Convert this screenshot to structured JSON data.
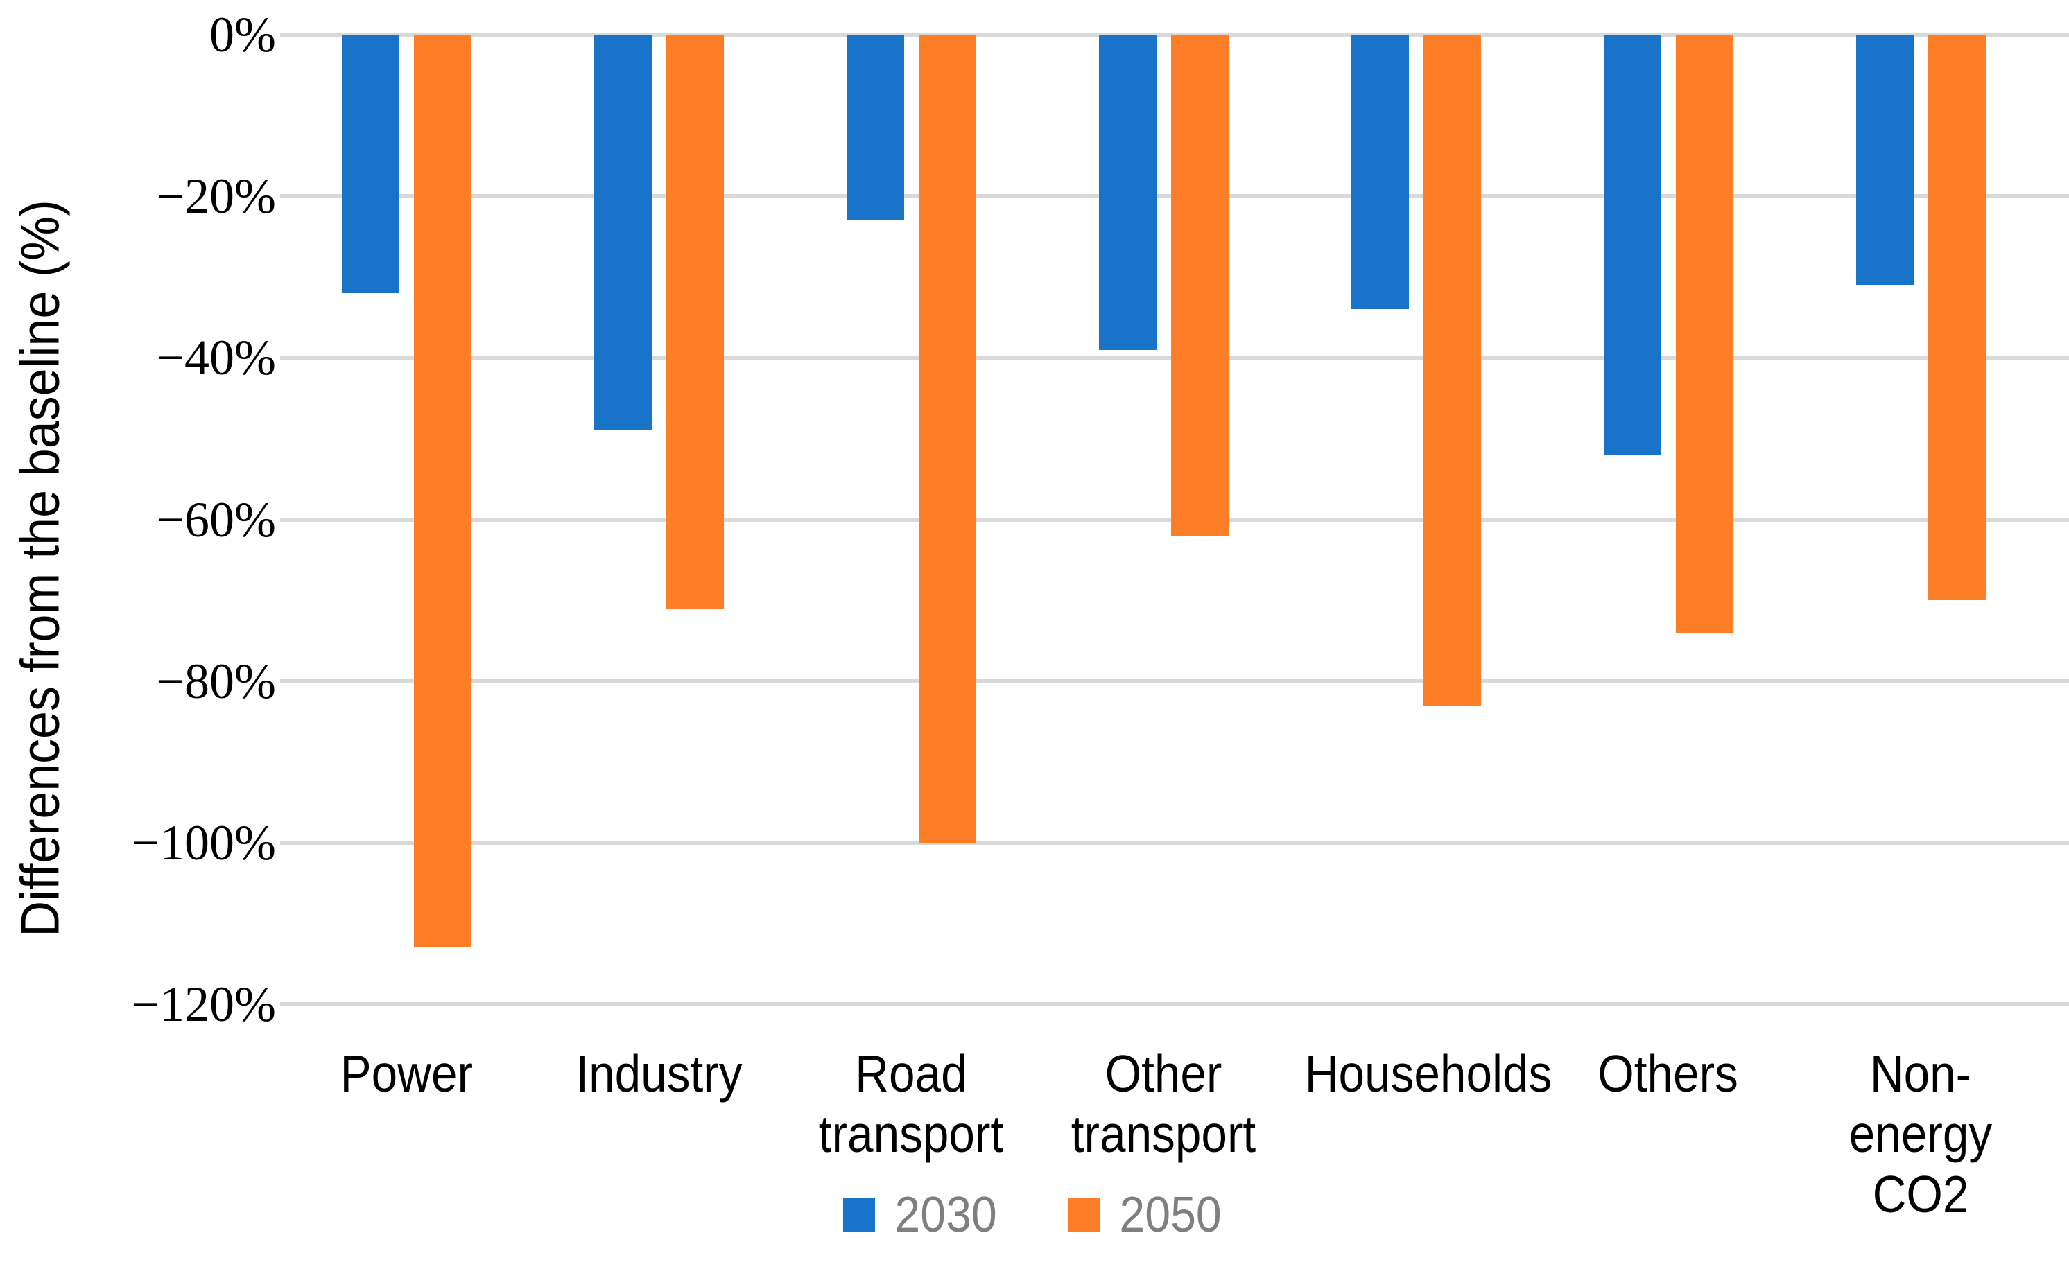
{
  "chart_data": {
    "type": "bar",
    "title": "",
    "categories": [
      "Power",
      "Industry",
      "Road transport",
      "Other transport",
      "Households",
      "Others",
      "Non-energy CO2"
    ],
    "series": [
      {
        "name": "2030",
        "color": "#1973c8",
        "values": [
          -32,
          -49,
          -23,
          -39,
          -34,
          -52,
          -31
        ]
      },
      {
        "name": "2050",
        "color": "#fd7e27",
        "values": [
          -113,
          -71,
          -100,
          -62,
          -83,
          -74,
          -70
        ]
      }
    ],
    "xlabel": "",
    "ylabel": "Differences from the baseline (%)",
    "yticks": [
      "0%",
      "−20%",
      "−40%",
      "−60%",
      "−80%",
      "−100%",
      "−120%"
    ],
    "ylim": [
      -120,
      0
    ],
    "grid": true,
    "gridline_color": "#d9d9d9",
    "legend_position": "bottom",
    "legend_text_color": "#7f7f7f"
  }
}
